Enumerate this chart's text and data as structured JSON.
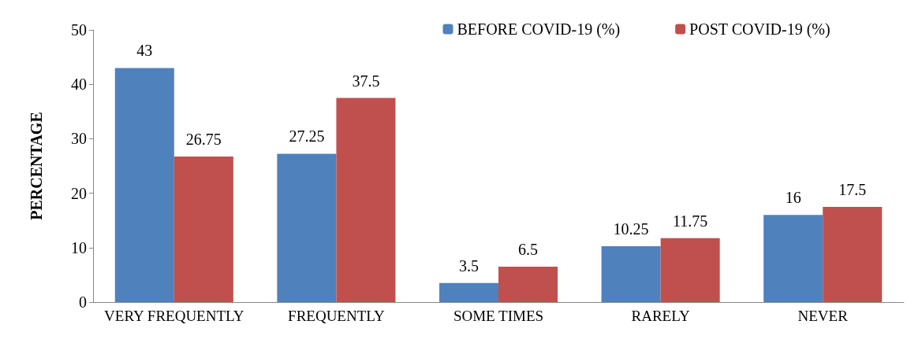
{
  "chart_data": {
    "type": "bar",
    "ylabel": "PERCENTAGE",
    "categories": [
      "VERY FREQUENTLY",
      "FREQUENTLY",
      "SOME TIMES",
      "RARELY",
      "NEVER"
    ],
    "series": [
      {
        "name": "BEFORE COVID-19 (%)",
        "color": "#4f81bd",
        "values": [
          43,
          27.25,
          3.5,
          10.25,
          16
        ]
      },
      {
        "name": "POST COVID-19 (%)",
        "color": "#c0504d",
        "values": [
          26.75,
          37.5,
          6.5,
          11.75,
          17.5
        ]
      }
    ],
    "ylim": [
      0,
      50
    ],
    "yticks": [
      0,
      10,
      20,
      30,
      40,
      50
    ],
    "grid": false,
    "legend": "top right",
    "data_labels": true
  }
}
